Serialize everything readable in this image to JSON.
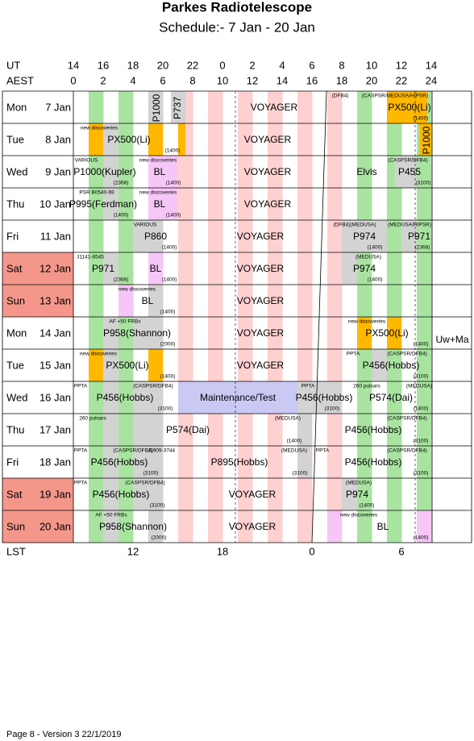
{
  "header": {
    "title": "Parkes Radiotelescope",
    "subtitle": "Schedule:- 7  Jan - 20 Jan"
  },
  "axis": {
    "ut_label": "UT",
    "ut": [
      14,
      16,
      18,
      20,
      22,
      0,
      2,
      4,
      6,
      8,
      10,
      12,
      14
    ],
    "aest_label": "AEST",
    "aest": [
      0,
      2,
      4,
      6,
      8,
      10,
      12,
      14,
      16,
      18,
      20,
      22,
      24
    ],
    "lst_label": "LST",
    "lst": [
      12,
      18,
      0,
      6
    ]
  },
  "rows": [
    {
      "day": "Mon",
      "date": "7  Jan",
      "items": [
        "P1000",
        "P737",
        "VOYAGER",
        "(DFB4)",
        "(CASPSR/MEDUSA/HIPSR)",
        "PX500(Li)",
        "(1400)"
      ]
    },
    {
      "day": "Tue",
      "date": "8  Jan",
      "items": [
        "new discoveries",
        "PX500(Li)",
        "(1400)",
        "VOYAGER",
        "P1000"
      ]
    },
    {
      "day": "Wed",
      "date": "9  Jan",
      "items": [
        "VARIOUS",
        "P1000(Kupler)",
        "(2368)",
        "new discoveries",
        "BL",
        "(1400)",
        "VOYAGER",
        "Elvis",
        "(CASPSR/DFB4)",
        "P455",
        "(3100)"
      ]
    },
    {
      "day": "Thu",
      "date": "10 Jan",
      "items": [
        "PSR B0540-69",
        "P995(Ferdman)",
        "(1400)",
        "new discoveries",
        "BL",
        "(1400)",
        "VOYAGER"
      ]
    },
    {
      "day": "Fri",
      "date": "11 Jan",
      "items": [
        "VARIOUS",
        "P860",
        "(1400)",
        "VOYAGER",
        "(DFB4)(MEDUSA)",
        "P974",
        "(1400)",
        "(MEDUSA/HIPSR)",
        "P971",
        "(2368)"
      ]
    },
    {
      "day": "Sat",
      "date": "12 Jan",
      "items": [
        "J1141-6545",
        "P971",
        "(2368)",
        "BL",
        "(1400)",
        "VOYAGER",
        "(MEDUSA)",
        "P974",
        "(1400)"
      ]
    },
    {
      "day": "Sun",
      "date": "13 Jan",
      "items": [
        "new discoveries",
        "BL",
        "(1400)",
        "VOYAGER"
      ]
    },
    {
      "day": "Mon",
      "date": "14 Jan",
      "items": [
        "AF +50  FRBs",
        "P958(Shannon)",
        "(2000)",
        "VOYAGER",
        "new discoveries",
        "PX500(Li)",
        "(1400)"
      ]
    },
    {
      "day": "Tue",
      "date": "15 Jan",
      "items": [
        "new discoveries",
        "PX500(Li)",
        "(1400)",
        "VOYAGER",
        "PPTA",
        "(CASPSR/DFB4)",
        "P456(Hobbs)",
        "(3100)"
      ]
    },
    {
      "day": "Wed",
      "date": "16 Jan",
      "items": [
        "PPTA",
        "(CASPSR/DFB4)",
        "P456(Hobbs)",
        "(3100)",
        "Maintenance/Test",
        "PPTA",
        "P456(Hobbs)",
        "(3100)",
        "260 pulsars",
        "(MEDUSA)",
        "P574(Dai)",
        "(1400)"
      ]
    },
    {
      "day": "Thu",
      "date": "17 Jan",
      "items": [
        "260 pulsars",
        "P574(Dai)",
        "(MEDUSA)",
        "(1400)",
        "(CASPSR/DFB4)",
        "P456(Hobbs)",
        "(3100)"
      ]
    },
    {
      "day": "Fri",
      "date": "18 Jan",
      "items": [
        "PPTA",
        "(CASPSR/DFB4)",
        "P456(Hobbs)",
        "(3100)",
        "J1909-3744",
        "P895(Hobbs)",
        "(MEDUSA)",
        "(3100)",
        "PPTA",
        "(CASPSR/DFB4)",
        "P456(Hobbs)",
        "(3100)"
      ]
    },
    {
      "day": "Sat",
      "date": "19 Jan",
      "items": [
        "PPTA",
        "(CASPSR/DFB4)",
        "P456(Hobbs)",
        "(3100)",
        "VOYAGER",
        "(MEDUSA)",
        "P974",
        "(1400)"
      ]
    },
    {
      "day": "Sun",
      "date": "20 Jan",
      "items": [
        "AF +50  FRBs",
        "P958(Shannon)",
        "(2000)",
        "VOYAGER",
        "new discoveries",
        "BL",
        "(1400)"
      ]
    }
  ],
  "side_note": "Uw+Ma",
  "footer": "Page 8 - Version 3  22/1/2019"
}
